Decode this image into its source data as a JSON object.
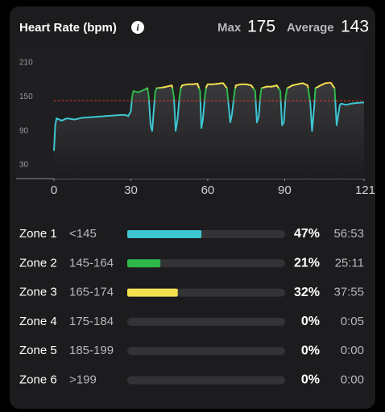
{
  "header": {
    "title": "Heart Rate (bpm)",
    "max_label": "Max",
    "max_value": 175,
    "avg_label": "Average",
    "avg_value": 143
  },
  "chart_data": [
    {
      "type": "line",
      "x": [
        0,
        0.5,
        1,
        3,
        5,
        8,
        11,
        14,
        17,
        20,
        23,
        26,
        28,
        29,
        30,
        30.5,
        31,
        33,
        35,
        36.5,
        37,
        37.7,
        38.3,
        39,
        39.5,
        40,
        42,
        44,
        46,
        46.8,
        47.5,
        48.2,
        49,
        49.5,
        50,
        52,
        54,
        56,
        57,
        57.5,
        58.1,
        59,
        59.5,
        60,
        62,
        64,
        66,
        67.5,
        68.8,
        69.5,
        70.5,
        71,
        73,
        75,
        77,
        78.5,
        79.2,
        79.9,
        80.6,
        81,
        83,
        85,
        87,
        88.3,
        89,
        89.7,
        90.4,
        91,
        93,
        95,
        97,
        99,
        100,
        100.7,
        101.5,
        102,
        104,
        106,
        108,
        109.5,
        110.3,
        111,
        111.5,
        112,
        114,
        116,
        118,
        121
      ],
      "values": [
        55,
        100,
        112,
        108,
        112,
        110,
        113,
        114,
        115,
        116,
        117,
        118,
        118,
        116,
        125,
        150,
        160,
        158,
        162,
        165,
        150,
        100,
        90,
        130,
        158,
        165,
        166,
        168,
        170,
        150,
        90,
        110,
        150,
        165,
        170,
        172,
        172,
        173,
        160,
        95,
        110,
        155,
        168,
        172,
        172,
        173,
        174,
        165,
        105,
        120,
        160,
        170,
        172,
        172,
        170,
        160,
        105,
        115,
        155,
        165,
        168,
        168,
        170,
        160,
        100,
        105,
        150,
        165,
        170,
        172,
        174,
        170,
        140,
        90,
        130,
        165,
        170,
        174,
        175,
        165,
        100,
        120,
        135,
        138,
        136,
        138,
        139,
        140
      ],
      "xlim": [
        0,
        121
      ],
      "xticks": [
        0,
        30,
        60,
        90,
        121
      ],
      "ylim": [
        6,
        224
      ],
      "yticks": [
        30,
        90,
        150,
        210
      ],
      "reference_line": 143,
      "reference_color": "#d9342b"
    },
    {
      "type": "bar",
      "orientation": "horizontal",
      "categories": [
        "Zone 1",
        "Zone 2",
        "Zone 3",
        "Zone 4",
        "Zone 5",
        "Zone 6"
      ],
      "ranges": [
        "<145",
        "145-164",
        "165-174",
        "175-184",
        "185-199",
        ">199"
      ],
      "values": [
        47,
        21,
        32,
        0,
        0,
        0
      ],
      "value_labels": [
        "47%",
        "21%",
        "32%",
        "0%",
        "0%",
        "0%"
      ],
      "times": [
        "56:53",
        "25:11",
        "37:55",
        "0:05",
        "0:00",
        "0:00"
      ],
      "colors": [
        "#3ec6d2",
        "#2eb84a",
        "#f5e04f",
        "#e0822c",
        "#e04a3a",
        "#c02a8a"
      ],
      "xlim": [
        0,
        100
      ]
    }
  ]
}
